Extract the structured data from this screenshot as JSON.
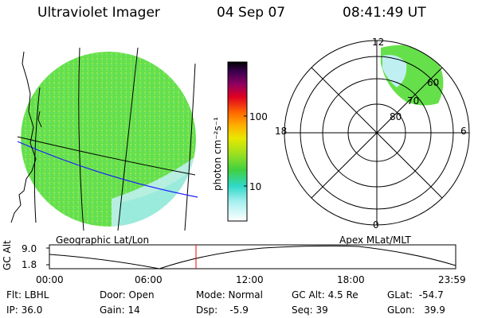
{
  "header": {
    "instrument": "Ultraviolet Imager",
    "date": "04 Sep 07",
    "time": "08:41:49 UT"
  },
  "colorbar": {
    "unit_label": "photon cm⁻²s⁻¹",
    "ticks": [
      "100",
      "10"
    ]
  },
  "polar_plot": {
    "mlt_labels": [
      "12",
      "18",
      "6",
      "0"
    ],
    "mlat_labels": [
      "60",
      "70",
      "80"
    ]
  },
  "captions": {
    "left": "Geographic Lat/Lon",
    "right": "Apex MLat/MLT"
  },
  "altitude_plot": {
    "ylabel": "GC Alt",
    "yticks": [
      "9.0",
      "1.8"
    ],
    "xticks": [
      "00:00",
      "06:00",
      "12:00",
      "18:00",
      "23:59"
    ],
    "current_marker_time": "08:41",
    "marker_color": "#ff0000"
  },
  "status": {
    "flt": "Flt: LBHL",
    "ip": "IP: 36.0",
    "door": "Door: Open",
    "gain": "Gain: 14",
    "mode": "Mode: Normal",
    "dsp": "Dsp:    -5.9",
    "gc_alt": "GC Alt: 4.5 Re",
    "seq": "Seq: 39",
    "glat": "GLat:  -54.7",
    "glon": "GLon:   39.9"
  },
  "colors": {
    "aurora_main": "#66e04a",
    "aurora_fringe": "#bfeff0",
    "earth_grid": "#000000",
    "coast_line": "#000000",
    "blue_line": "#1a1aff"
  }
}
